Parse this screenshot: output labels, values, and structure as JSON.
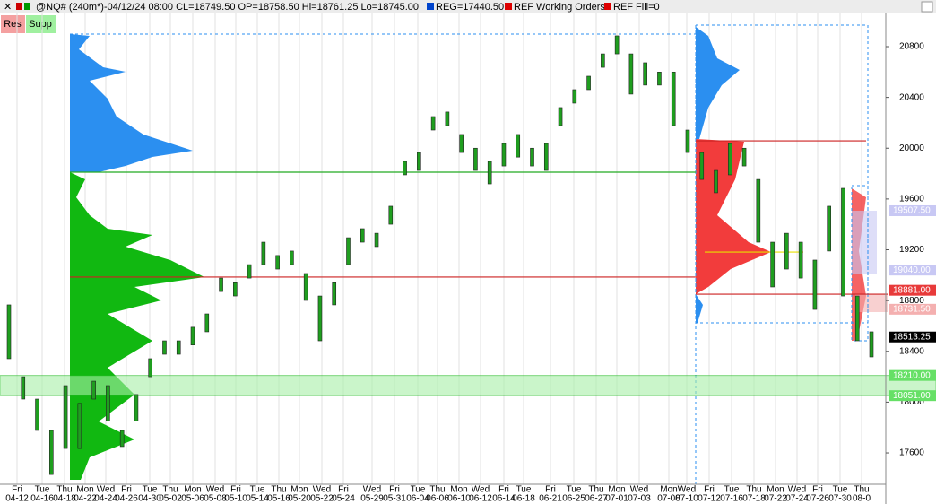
{
  "header": {
    "symbol_info": "@NQ# (240m*)-04/12/24 08:00 CL=18749.50 OP=18758.50 Hi=18761.25 Lo=18745.00",
    "reg": "REG=17440.50",
    "working_orders": "REF Working Orders",
    "fill": "REF Fill=0"
  },
  "buttons": [
    "Res",
    "Supp"
  ],
  "chart_data": {
    "type": "range-bar",
    "high": [
      18766,
      18200,
      18024,
      17777,
      18130,
      17990,
      18165,
      18130,
      17777,
      18060,
      18342,
      18483,
      18483,
      18590,
      18695,
      18977,
      18940,
      19083,
      19260,
      19155,
      19190,
      19013,
      18836,
      18940,
      19295,
      19366,
      19330,
      19543,
      19896,
      19966,
      20249,
      20285,
      20108,
      20000,
      19896,
      20037,
      20108,
      20000,
      20037,
      20320,
      20461,
      20567,
      20743,
      20885,
      20743,
      20673,
      20600,
      20600,
      20143,
      19966,
      19825,
      20037,
      20000,
      19754,
      19260,
      19330,
      19260,
      19119,
      19543,
      19684,
      18836,
      18554
    ],
    "low": [
      18342,
      18024,
      17777,
      17430,
      17635,
      17635,
      18024,
      17850,
      17650,
      17850,
      18200,
      18377,
      18377,
      18450,
      18554,
      18871,
      18836,
      18977,
      19083,
      19048,
      19083,
      18801,
      18483,
      18766,
      19083,
      19260,
      19225,
      19401,
      19790,
      19825,
      20143,
      20178,
      19966,
      19825,
      19719,
      19860,
      19930,
      19860,
      19825,
      20178,
      20355,
      20461,
      20637,
      20743,
      20426,
      20497,
      20497,
      20178,
      19966,
      19754,
      19649,
      19790,
      19860,
      19260,
      18907,
      19048,
      18977,
      18730,
      19190,
      18836,
      18483,
      18356
    ],
    "color": "#1f9e1f",
    "ylim": [
      17353,
      21026
    ],
    "yticks": [
      17600,
      18000,
      18400,
      18800,
      19200,
      19600,
      20000,
      20400,
      20800
    ],
    "x_day_labels": [
      "Fri",
      "Tue",
      "Thu",
      "Mon",
      "Wed",
      "Fri",
      "Tue",
      "Thu",
      "Mon",
      "Wed",
      "Fri",
      "Tue",
      "Thu",
      "Mon",
      "Wed",
      "Fri",
      "Wed",
      "Fri",
      "Tue",
      "Thu",
      "Mon",
      "Wed",
      "Fri",
      "Tue",
      "Fri",
      "Tue",
      "Thu",
      "Mon",
      "Wed",
      "Mon",
      "Wed",
      "Fri",
      "Tue",
      "Thu",
      "Mon",
      "Wed",
      "Fri",
      "Tue",
      "Thu"
    ],
    "x_date_labels": [
      "04-12",
      "04-16",
      "04-18",
      "04-22",
      "04-24",
      "04-26",
      "04-30",
      "05-02",
      "05-06",
      "05-08",
      "05-10",
      "05-14",
      "05-16",
      "05-20",
      "05-22",
      "05-24",
      "05-29",
      "05-31",
      "06-04",
      "06-06",
      "06-10",
      "06-12",
      "06-14",
      "06-18",
      "06-21",
      "06-25",
      "06-27",
      "07-01",
      "07-03",
      "07-08",
      "07-10",
      "07-12",
      "07-16",
      "07-18",
      "07-22",
      "07-24",
      "07-26",
      "07-30",
      "08-0"
    ],
    "levels": [
      {
        "value": 19811,
        "color": "#22aa22"
      },
      {
        "value": 18985,
        "color": "#cc2222"
      },
      {
        "value": 20058,
        "color": "#cc2222"
      },
      {
        "value": 19182,
        "color": "#e8e000"
      },
      {
        "value": 18850,
        "color": "#cc2222"
      }
    ],
    "price_labels": [
      {
        "value": 19507.5,
        "label": "19507.50",
        "color": "#c8c8f4"
      },
      {
        "value": 19040,
        "label": "19040.00",
        "color": "#c8c8f4"
      },
      {
        "value": 18881,
        "label": "18881.00",
        "color": "#e83a3a"
      },
      {
        "value": 18731.5,
        "label": "18731.50",
        "color": "#f4b0b0"
      },
      {
        "value": 18513.25,
        "label": "18513.25",
        "color": "#000000"
      },
      {
        "value": 18210,
        "label": "18210.00",
        "color": "#66e066"
      },
      {
        "value": 18051,
        "label": "18051.00",
        "color": "#66e066"
      }
    ]
  }
}
